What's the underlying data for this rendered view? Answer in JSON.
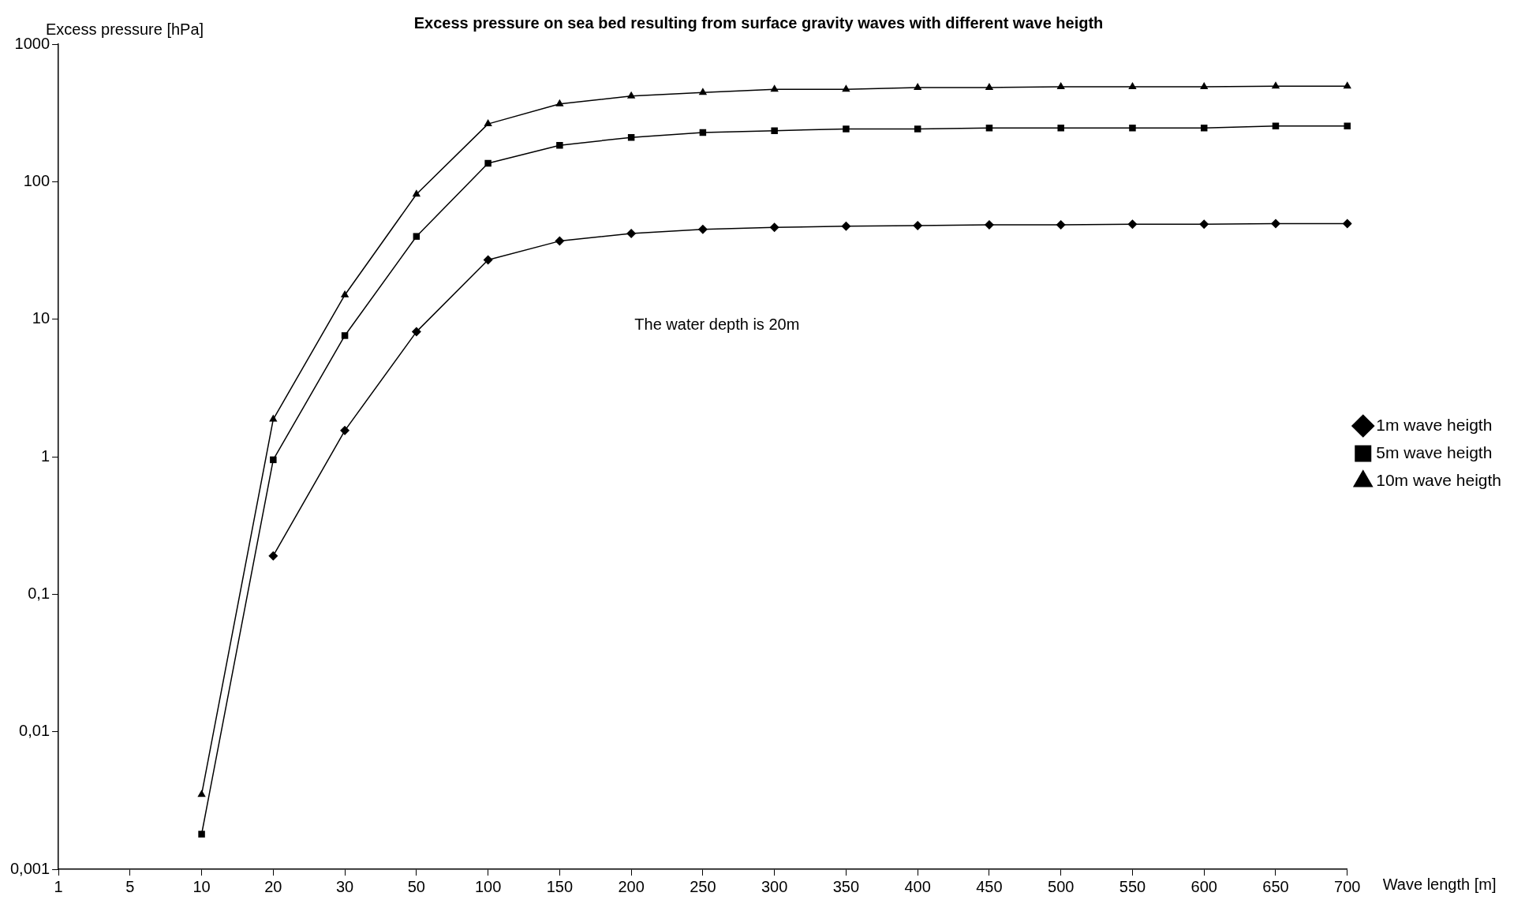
{
  "chart_data": {
    "type": "line",
    "title": "Excess pressure on sea bed resulting from surface gravity waves with different wave heigth",
    "xlabel": "Wave length [m]",
    "ylabel": "Excess pressure [hPa]",
    "categories": [
      "1",
      "5",
      "10",
      "20",
      "30",
      "50",
      "100",
      "150",
      "200",
      "250",
      "300",
      "350",
      "400",
      "450",
      "500",
      "550",
      "600",
      "650",
      "700"
    ],
    "series": [
      {
        "name": "1m wave heigth",
        "color": "#000000",
        "marker": "diamond",
        "values": [
          null,
          null,
          null,
          0.19,
          1.55,
          8.1,
          27,
          37,
          42,
          45,
          46.5,
          47.5,
          48,
          48.5,
          48.5,
          49,
          49,
          49.5,
          49.5
        ]
      },
      {
        "name": "5m wave heigth",
        "color": "#000000",
        "marker": "square",
        "values": [
          null,
          null,
          0.0018,
          0.95,
          7.6,
          40,
          136,
          184,
          210,
          228,
          235,
          242,
          242,
          246,
          246,
          246,
          246,
          254,
          254
        ]
      },
      {
        "name": "10m wave heigth",
        "color": "#000000",
        "marker": "triangle",
        "values": [
          null,
          null,
          0.0035,
          1.87,
          15,
          81,
          263,
          368,
          419,
          446,
          470,
          470,
          484,
          484,
          490,
          490,
          490,
          495,
          495
        ]
      }
    ],
    "log": "y",
    "ylim": [
      0.001,
      1000
    ],
    "yticks": [
      {
        "value": 0.001,
        "label": "0,001"
      },
      {
        "value": 0.01,
        "label": "0,01"
      },
      {
        "value": 0.1,
        "label": "0,1"
      },
      1,
      10,
      100,
      1000
    ],
    "grid": false,
    "legend": "right",
    "annotations": [
      "The water depth is 20m"
    ]
  }
}
